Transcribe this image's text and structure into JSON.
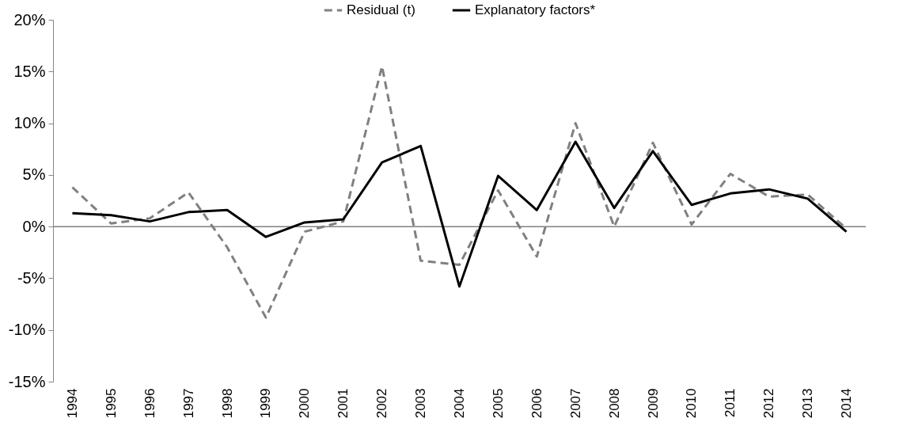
{
  "chart_data": {
    "type": "line",
    "categories": [
      "1994",
      "1995",
      "1996",
      "1997",
      "1998",
      "1999",
      "2000",
      "2001",
      "2002",
      "2003",
      "2004",
      "2005",
      "2006",
      "2007",
      "2008",
      "2009",
      "2010",
      "2011",
      "2012",
      "2013",
      "2014"
    ],
    "series": [
      {
        "name": "Residual (t)",
        "color": "#808080",
        "line_style": "dashed",
        "values": [
          3.8,
          0.3,
          0.8,
          3.3,
          -2,
          -8.8,
          -0.5,
          0.5,
          15.5,
          -3.3,
          -3.7,
          3.5,
          -2.9,
          10,
          0,
          8.1,
          0.2,
          5.1,
          2.9,
          3.1,
          -0.2
        ]
      },
      {
        "name": "Explanatory factors*",
        "color": "#000000",
        "line_style": "solid",
        "values": [
          1.3,
          1.1,
          0.5,
          1.4,
          1.6,
          -1,
          0.4,
          0.7,
          6.2,
          7.8,
          -5.8,
          4.9,
          1.6,
          8.2,
          1.8,
          7.3,
          2.1,
          3.2,
          3.6,
          2.7,
          -0.5
        ]
      }
    ],
    "ylim": [
      -15,
      20
    ],
    "yticks": [
      {
        "value": -15,
        "label": "-15%"
      },
      {
        "value": -10,
        "label": "-10%"
      },
      {
        "value": -5,
        "label": "-5%"
      },
      {
        "value": 0,
        "label": "0%"
      },
      {
        "value": 5,
        "label": "5%"
      },
      {
        "value": 10,
        "label": "10%"
      },
      {
        "value": 15,
        "label": "15%"
      },
      {
        "value": 20,
        "label": "20%"
      }
    ],
    "ref_lines": [
      {
        "axis": "y",
        "value": 0,
        "color": "#808080"
      }
    ],
    "grid": false,
    "legend": "top",
    "marker": "none"
  }
}
